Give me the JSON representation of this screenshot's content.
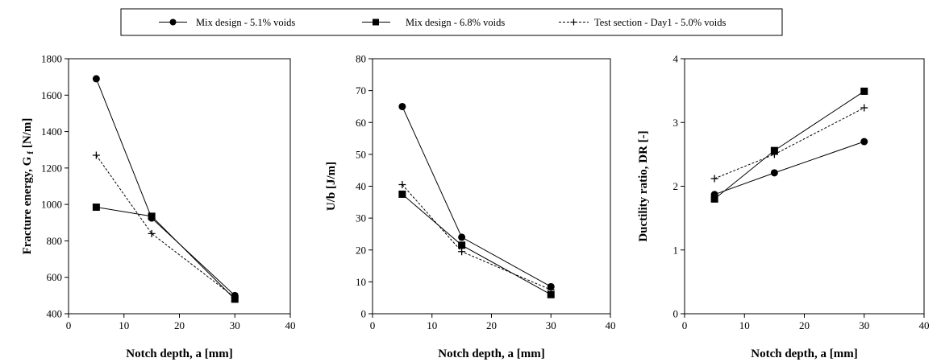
{
  "legend": {
    "placement": "top-center",
    "entries": [
      {
        "label": "Mix design - 5.1% voids",
        "marker": "circle",
        "line": "solid"
      },
      {
        "label": "Mix design - 6.8% voids",
        "marker": "square",
        "line": "solid"
      },
      {
        "label": "Test section - Day1 - 5.0% voids",
        "marker": "plus",
        "line": "dashed"
      }
    ]
  },
  "chart_data": [
    {
      "type": "line",
      "xlabel": "Notch depth, a [mm]",
      "ylabel": "Fracture energy, G",
      "ylabel_sub": "f",
      "ylabel_unit": " [N/m]",
      "xlim": [
        0,
        40
      ],
      "ylim": [
        400,
        1800
      ],
      "xticks": [
        0,
        10,
        20,
        30,
        40
      ],
      "yticks": [
        400,
        600,
        800,
        1000,
        1200,
        1400,
        1600,
        1800
      ],
      "grid": false,
      "x": [
        5,
        15,
        30
      ],
      "series": [
        {
          "name": "Mix design - 5.1% voids",
          "values": [
            1690,
            925,
            500
          ]
        },
        {
          "name": "Mix design - 6.8% voids",
          "values": [
            985,
            935,
            480
          ]
        },
        {
          "name": "Test section - Day1 - 5.0% voids",
          "values": [
            1270,
            840,
            490
          ]
        }
      ]
    },
    {
      "type": "line",
      "xlabel": "Notch depth, a [mm]",
      "ylabel": "U/b [J/m]",
      "ylabel_sub": "",
      "ylabel_unit": "",
      "xlim": [
        0,
        40
      ],
      "ylim": [
        0,
        80
      ],
      "xticks": [
        0,
        10,
        20,
        30,
        40
      ],
      "yticks": [
        0,
        10,
        20,
        30,
        40,
        50,
        60,
        70,
        80
      ],
      "grid": false,
      "x": [
        5,
        15,
        30
      ],
      "series": [
        {
          "name": "Mix design - 5.1% voids",
          "values": [
            65,
            24,
            8.5
          ]
        },
        {
          "name": "Mix design - 6.8% voids",
          "values": [
            37.5,
            21.5,
            6
          ]
        },
        {
          "name": "Test section - Day1 - 5.0% voids",
          "values": [
            40.5,
            19.5,
            7.5
          ]
        }
      ]
    },
    {
      "type": "line",
      "xlabel": "Notch depth, a [mm]",
      "ylabel": "Ductility ratio, DR [-]",
      "ylabel_sub": "",
      "ylabel_unit": "",
      "xlim": [
        0,
        40
      ],
      "ylim": [
        0,
        4
      ],
      "xticks": [
        0,
        10,
        20,
        30,
        40
      ],
      "yticks": [
        0,
        1,
        2,
        3,
        4
      ],
      "grid": false,
      "x": [
        5,
        15,
        30
      ],
      "series": [
        {
          "name": "Mix design - 5.1% voids",
          "values": [
            1.87,
            2.21,
            2.7
          ]
        },
        {
          "name": "Mix design - 6.8% voids",
          "values": [
            1.8,
            2.56,
            3.49
          ]
        },
        {
          "name": "Test section - Day1 - 5.0% voids",
          "values": [
            2.12,
            2.5,
            3.23
          ]
        }
      ]
    }
  ]
}
